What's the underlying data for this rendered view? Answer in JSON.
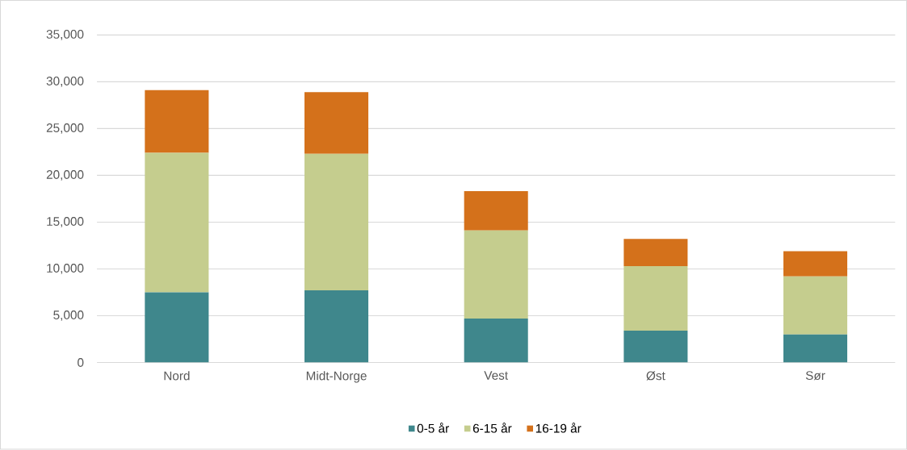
{
  "chart_data": {
    "type": "bar",
    "stacked": true,
    "categories": [
      "Nord",
      "Midt-Norge",
      "Vest",
      "Øst",
      "Sør"
    ],
    "series": [
      {
        "name": "0-5 år",
        "color": "#3f878c",
        "values": [
          7500,
          7700,
          4700,
          3400,
          3000
        ]
      },
      {
        "name": "6-15 år",
        "color": "#c5cd8e",
        "values": [
          14900,
          14600,
          9400,
          6900,
          6200
        ]
      },
      {
        "name": "16-19 år",
        "color": "#d4711b",
        "values": [
          6700,
          6600,
          4200,
          2900,
          2700
        ]
      }
    ],
    "ylim": [
      0,
      35000
    ],
    "yticks": [
      {
        "value": 0,
        "label": "0"
      },
      {
        "value": 5000,
        "label": "5,000"
      },
      {
        "value": 10000,
        "label": "10,000"
      },
      {
        "value": 15000,
        "label": "15,000"
      },
      {
        "value": 20000,
        "label": "20,000"
      },
      {
        "value": 25000,
        "label": "25,000"
      },
      {
        "value": 30000,
        "label": "30,000"
      },
      {
        "value": 35000,
        "label": "35,000"
      }
    ],
    "grid": "y",
    "legend": "bottom"
  }
}
